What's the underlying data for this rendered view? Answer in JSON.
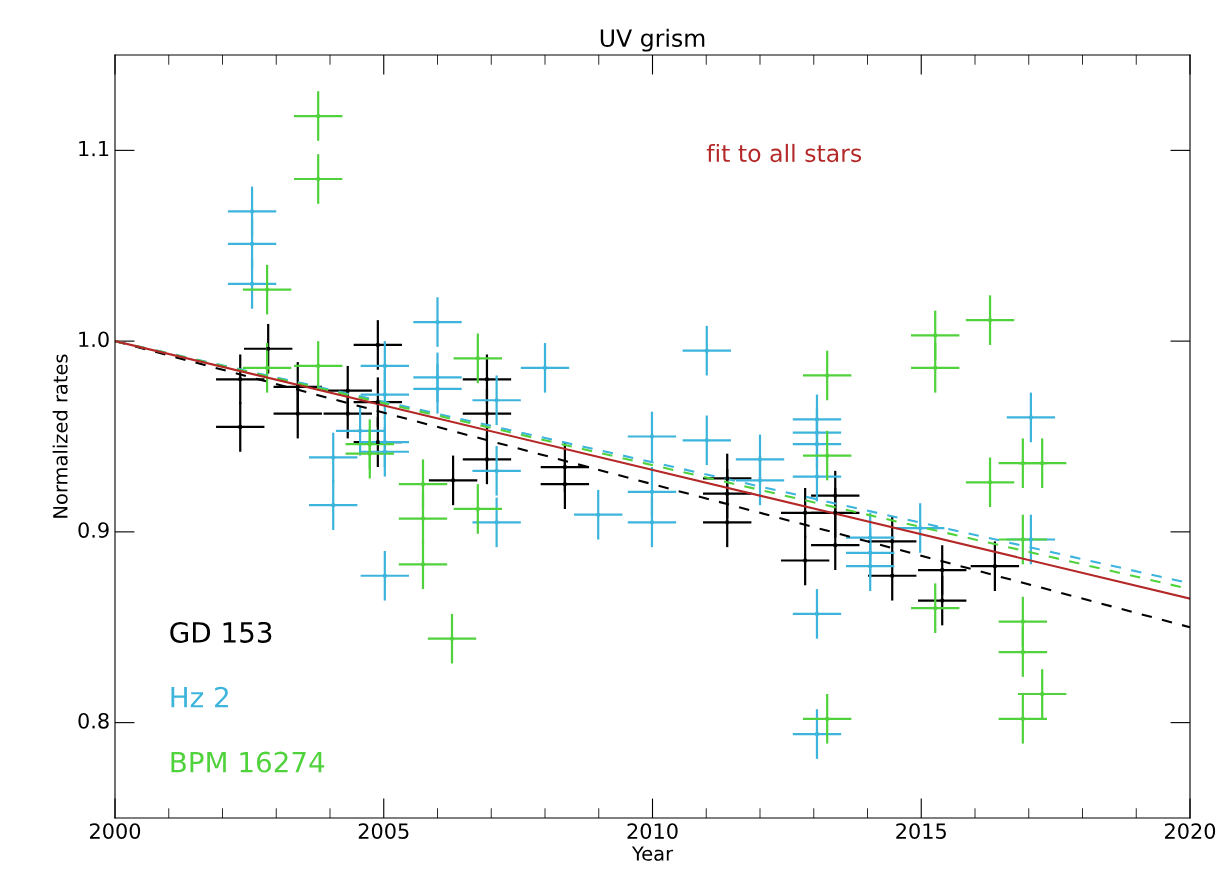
{
  "chart_data": {
    "type": "scatter",
    "title": "UV grism",
    "xlabel": "Year",
    "ylabel": "Normalized rates",
    "xlim": [
      2000,
      2020
    ],
    "xticks": [
      2000,
      {
        "value": 2001,
        "label": null
      },
      {
        "value": 2002,
        "label": null
      },
      {
        "value": 2003,
        "label": null
      },
      {
        "value": 2004,
        "label": null
      },
      2005,
      {
        "value": 2006,
        "label": null
      },
      {
        "value": 2007,
        "label": null
      },
      {
        "value": 2008,
        "label": null
      },
      {
        "value": 2009,
        "label": null
      },
      2010,
      {
        "value": 2011,
        "label": null
      },
      {
        "value": 2012,
        "label": null
      },
      {
        "value": 2013,
        "label": null
      },
      {
        "value": 2014,
        "label": null
      },
      2015,
      {
        "value": 2016,
        "label": null
      },
      {
        "value": 2017,
        "label": null
      },
      {
        "value": 2018,
        "label": null
      },
      {
        "value": 2019,
        "label": null
      },
      2020
    ],
    "ylim": [
      0.75,
      1.15
    ],
    "yticks": [
      {
        "value": 0.8,
        "label": "0.8"
      },
      {
        "value": 0.9,
        "label": "0.9"
      },
      {
        "value": 1.0,
        "label": "1.0"
      },
      {
        "value": 1.1,
        "label": "1.1"
      }
    ],
    "grid": false,
    "marker": "square",
    "series": [
      {
        "name": "GD 153",
        "color": "#000000",
        "x": [
          2002.33,
          2002.33,
          2002.85,
          2003.4,
          2003.4,
          2004.33,
          2004.33,
          2004.89,
          2004.89,
          2004.89,
          2006.29,
          2006.92,
          2006.92,
          2006.92,
          2008.37,
          2008.37,
          2011.39,
          2011.39,
          2011.39,
          2012.84,
          2012.84,
          2013.4,
          2013.4,
          2013.4,
          2014.46,
          2014.46,
          2015.39,
          2015.39,
          2016.37
        ],
        "values": [
          0.98,
          0.955,
          0.996,
          0.976,
          0.962,
          0.974,
          0.962,
          0.998,
          0.968,
          0.947,
          0.927,
          0.98,
          0.962,
          0.938,
          0.934,
          0.925,
          0.928,
          0.92,
          0.905,
          0.91,
          0.885,
          0.919,
          0.91,
          0.893,
          0.895,
          0.877,
          0.88,
          0.864,
          0.882
        ],
        "errors": [
          0.013,
          0.013,
          0.013,
          0.013,
          0.013,
          0.013,
          0.013,
          0.013,
          0.013,
          0.013,
          0.013,
          0.013,
          0.013,
          0.013,
          0.013,
          0.013,
          0.013,
          0.013,
          0.013,
          0.013,
          0.013,
          0.013,
          0.013,
          0.013,
          0.013,
          0.013,
          0.013,
          0.013,
          0.013
        ],
        "xerrors": [
          0.45,
          0.45,
          0.45,
          0.45,
          0.45,
          0.45,
          0.45,
          0.45,
          0.45,
          0.45,
          0.45,
          0.45,
          0.45,
          0.45,
          0.45,
          0.45,
          0.45,
          0.45,
          0.45,
          0.45,
          0.45,
          0.45,
          0.45,
          0.45,
          0.45,
          0.45,
          0.45,
          0.45,
          0.45
        ]
      },
      {
        "name": "Hz 2",
        "color": "#3cb4dc",
        "x": [
          2002.55,
          2002.55,
          2002.55,
          2004.06,
          2004.06,
          2004.56,
          2005.02,
          2005.02,
          2005.02,
          2005.02,
          2005.02,
          2006.0,
          2006.0,
          2006.0,
          2007.1,
          2007.1,
          2007.1,
          2008.0,
          2008.99,
          2009.99,
          2009.99,
          2009.99,
          2011.01,
          2011.01,
          2012.0,
          2012.0,
          2013.06,
          2013.06,
          2013.06,
          2013.06,
          2013.06,
          2013.06,
          2014.05,
          2014.05,
          2014.05,
          2014.98,
          2017.04,
          2017.04
        ],
        "values": [
          1.068,
          1.051,
          1.03,
          0.939,
          0.914,
          0.953,
          0.987,
          0.972,
          0.947,
          0.942,
          0.877,
          1.01,
          0.981,
          0.975,
          0.969,
          0.932,
          0.905,
          0.986,
          0.909,
          0.95,
          0.921,
          0.905,
          0.995,
          0.948,
          0.938,
          0.927,
          0.959,
          0.952,
          0.946,
          0.929,
          0.857,
          0.794,
          0.897,
          0.889,
          0.882,
          0.902,
          0.96,
          0.896
        ],
        "errors": [
          0.013,
          0.013,
          0.013,
          0.013,
          0.013,
          0.013,
          0.013,
          0.013,
          0.013,
          0.013,
          0.013,
          0.013,
          0.013,
          0.013,
          0.013,
          0.013,
          0.013,
          0.013,
          0.013,
          0.013,
          0.013,
          0.013,
          0.013,
          0.013,
          0.013,
          0.013,
          0.013,
          0.013,
          0.013,
          0.013,
          0.013,
          0.013,
          0.013,
          0.013,
          0.013,
          0.013,
          0.013,
          0.013
        ],
        "xerrors": [
          0.45,
          0.45,
          0.45,
          0.45,
          0.45,
          0.45,
          0.45,
          0.45,
          0.45,
          0.45,
          0.45,
          0.45,
          0.45,
          0.45,
          0.45,
          0.45,
          0.45,
          0.45,
          0.45,
          0.45,
          0.45,
          0.45,
          0.45,
          0.45,
          0.45,
          0.45,
          0.45,
          0.45,
          0.45,
          0.45,
          0.45,
          0.45,
          0.45,
          0.45,
          0.45,
          0.45,
          0.45,
          0.45
        ]
      },
      {
        "name": "BPM 16274",
        "color": "#50d23c",
        "x": [
          2002.83,
          2002.83,
          2003.78,
          2003.78,
          2003.78,
          2004.74,
          2004.74,
          2005.73,
          2005.73,
          2005.73,
          2006.27,
          2006.75,
          2006.75,
          2013.25,
          2013.25,
          2013.25,
          2015.26,
          2015.26,
          2015.26,
          2016.28,
          2016.28,
          2016.89,
          2016.89,
          2016.89,
          2016.89,
          2016.89,
          2017.25,
          2017.25
        ],
        "values": [
          1.027,
          0.986,
          1.118,
          1.085,
          0.987,
          0.946,
          0.941,
          0.925,
          0.907,
          0.883,
          0.844,
          0.991,
          0.912,
          0.982,
          0.94,
          0.802,
          1.003,
          0.986,
          0.86,
          1.011,
          0.926,
          0.936,
          0.896,
          0.853,
          0.837,
          0.802,
          0.936,
          0.815
        ],
        "errors": [
          0.013,
          0.013,
          0.013,
          0.013,
          0.013,
          0.013,
          0.013,
          0.013,
          0.013,
          0.013,
          0.013,
          0.013,
          0.013,
          0.013,
          0.013,
          0.013,
          0.013,
          0.013,
          0.013,
          0.013,
          0.013,
          0.013,
          0.013,
          0.013,
          0.013,
          0.013,
          0.013,
          0.013
        ],
        "xerrors": [
          0.45,
          0.45,
          0.45,
          0.45,
          0.45,
          0.45,
          0.45,
          0.45,
          0.45,
          0.45,
          0.45,
          0.45,
          0.45,
          0.45,
          0.45,
          0.45,
          0.45,
          0.45,
          0.45,
          0.45,
          0.45,
          0.45,
          0.45,
          0.45,
          0.45,
          0.45,
          0.45,
          0.45
        ]
      },
      {
        "type": "line",
        "line_style": "dashed",
        "marker": "none",
        "color": "#000000",
        "x": [
          2000,
          2020
        ],
        "values": [
          1.0,
          0.85
        ]
      },
      {
        "type": "line",
        "line_style": "dashed",
        "marker": "none",
        "color": "#3cb4dc",
        "x": [
          2000,
          2020
        ],
        "values": [
          1.0,
          0.873
        ]
      },
      {
        "type": "line",
        "line_style": "dashed",
        "marker": "none",
        "color": "#50d23c",
        "x": [
          2000,
          2020
        ],
        "values": [
          1.0,
          0.87
        ]
      },
      {
        "type": "line",
        "line_style": "solid",
        "marker": "none",
        "color": "#b42828",
        "x": [
          2000,
          2020
        ],
        "values": [
          1.0,
          0.865
        ]
      }
    ],
    "annotations": [
      "fit to all stars"
    ]
  }
}
